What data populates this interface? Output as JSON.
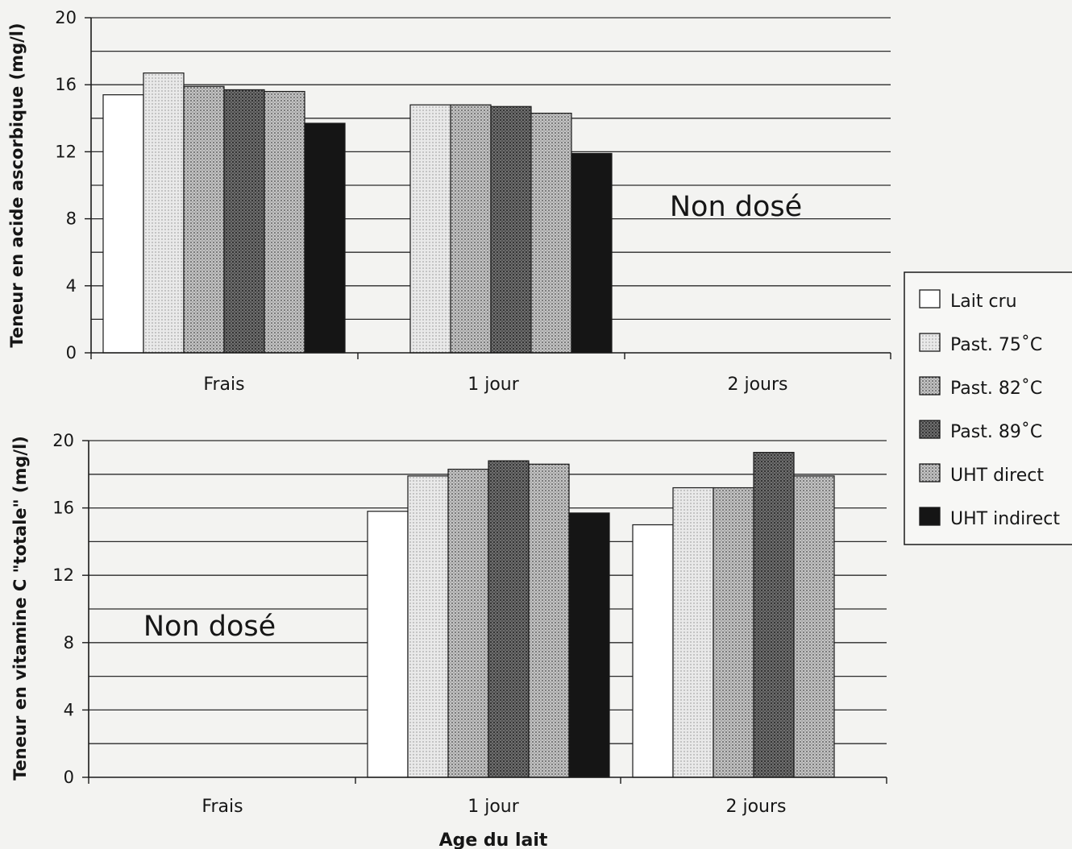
{
  "legend": [
    "Lait cru",
    "Past. 75˚C",
    "Past. 82˚C",
    "Past. 89˚C",
    "UHT direct",
    "UHT indirect"
  ],
  "styles": {
    "Lait cru": {
      "fill": "#ffffff",
      "pattern": "none"
    },
    "Past. 75˚C": {
      "fill": "#dcdcdc",
      "pattern": "dots-light"
    },
    "Past. 82˚C": {
      "fill": "#a8a8a8",
      "pattern": "dots-medium"
    },
    "Past. 89˚C": {
      "fill": "#5e5e5e",
      "pattern": "dots-dark"
    },
    "UHT direct": {
      "fill": "#b8b8b8",
      "pattern": "dots-medium"
    },
    "UHT indirect": {
      "fill": "#151515",
      "pattern": "solid"
    }
  },
  "xlabel": "Age du lait",
  "chart_data": [
    {
      "type": "bar",
      "ylabel": "Teneur en acide ascorbique (mg/l)",
      "ylim": [
        0,
        20
      ],
      "yticks": [
        0,
        4,
        8,
        12,
        16,
        20
      ],
      "grid": true,
      "categories": [
        "Frais",
        "1 jour",
        "2 jours"
      ],
      "series": [
        {
          "name": "Lait cru",
          "values": [
            15.4,
            null,
            null
          ]
        },
        {
          "name": "Past. 75˚C",
          "values": [
            16.7,
            14.8,
            null
          ]
        },
        {
          "name": "Past. 82˚C",
          "values": [
            15.9,
            14.8,
            null
          ]
        },
        {
          "name": "Past. 89˚C",
          "values": [
            15.7,
            14.7,
            null
          ]
        },
        {
          "name": "UHT direct",
          "values": [
            15.6,
            14.3,
            null
          ]
        },
        {
          "name": "UHT indirect",
          "values": [
            13.7,
            11.9,
            null
          ]
        }
      ],
      "annotation": {
        "text": "Non dosé",
        "category": "2 jours"
      }
    },
    {
      "type": "bar",
      "ylabel": "Teneur en vitamine C \"totale\" (mg/l)",
      "ylim": [
        0,
        20
      ],
      "yticks": [
        0,
        4,
        8,
        12,
        16,
        20
      ],
      "grid": true,
      "categories": [
        "Frais",
        "1 jour",
        "2 jours"
      ],
      "series": [
        {
          "name": "Lait cru",
          "values": [
            null,
            15.8,
            15.0
          ]
        },
        {
          "name": "Past. 75˚C",
          "values": [
            null,
            17.9,
            17.2
          ]
        },
        {
          "name": "Past. 82˚C",
          "values": [
            null,
            18.3,
            17.2
          ]
        },
        {
          "name": "Past. 89˚C",
          "values": [
            null,
            18.8,
            19.3
          ]
        },
        {
          "name": "UHT direct",
          "values": [
            null,
            18.6,
            17.9
          ]
        },
        {
          "name": "UHT indirect",
          "values": [
            null,
            15.7,
            null
          ]
        }
      ],
      "annotation": {
        "text": "Non dosé",
        "category": "Frais"
      }
    }
  ]
}
